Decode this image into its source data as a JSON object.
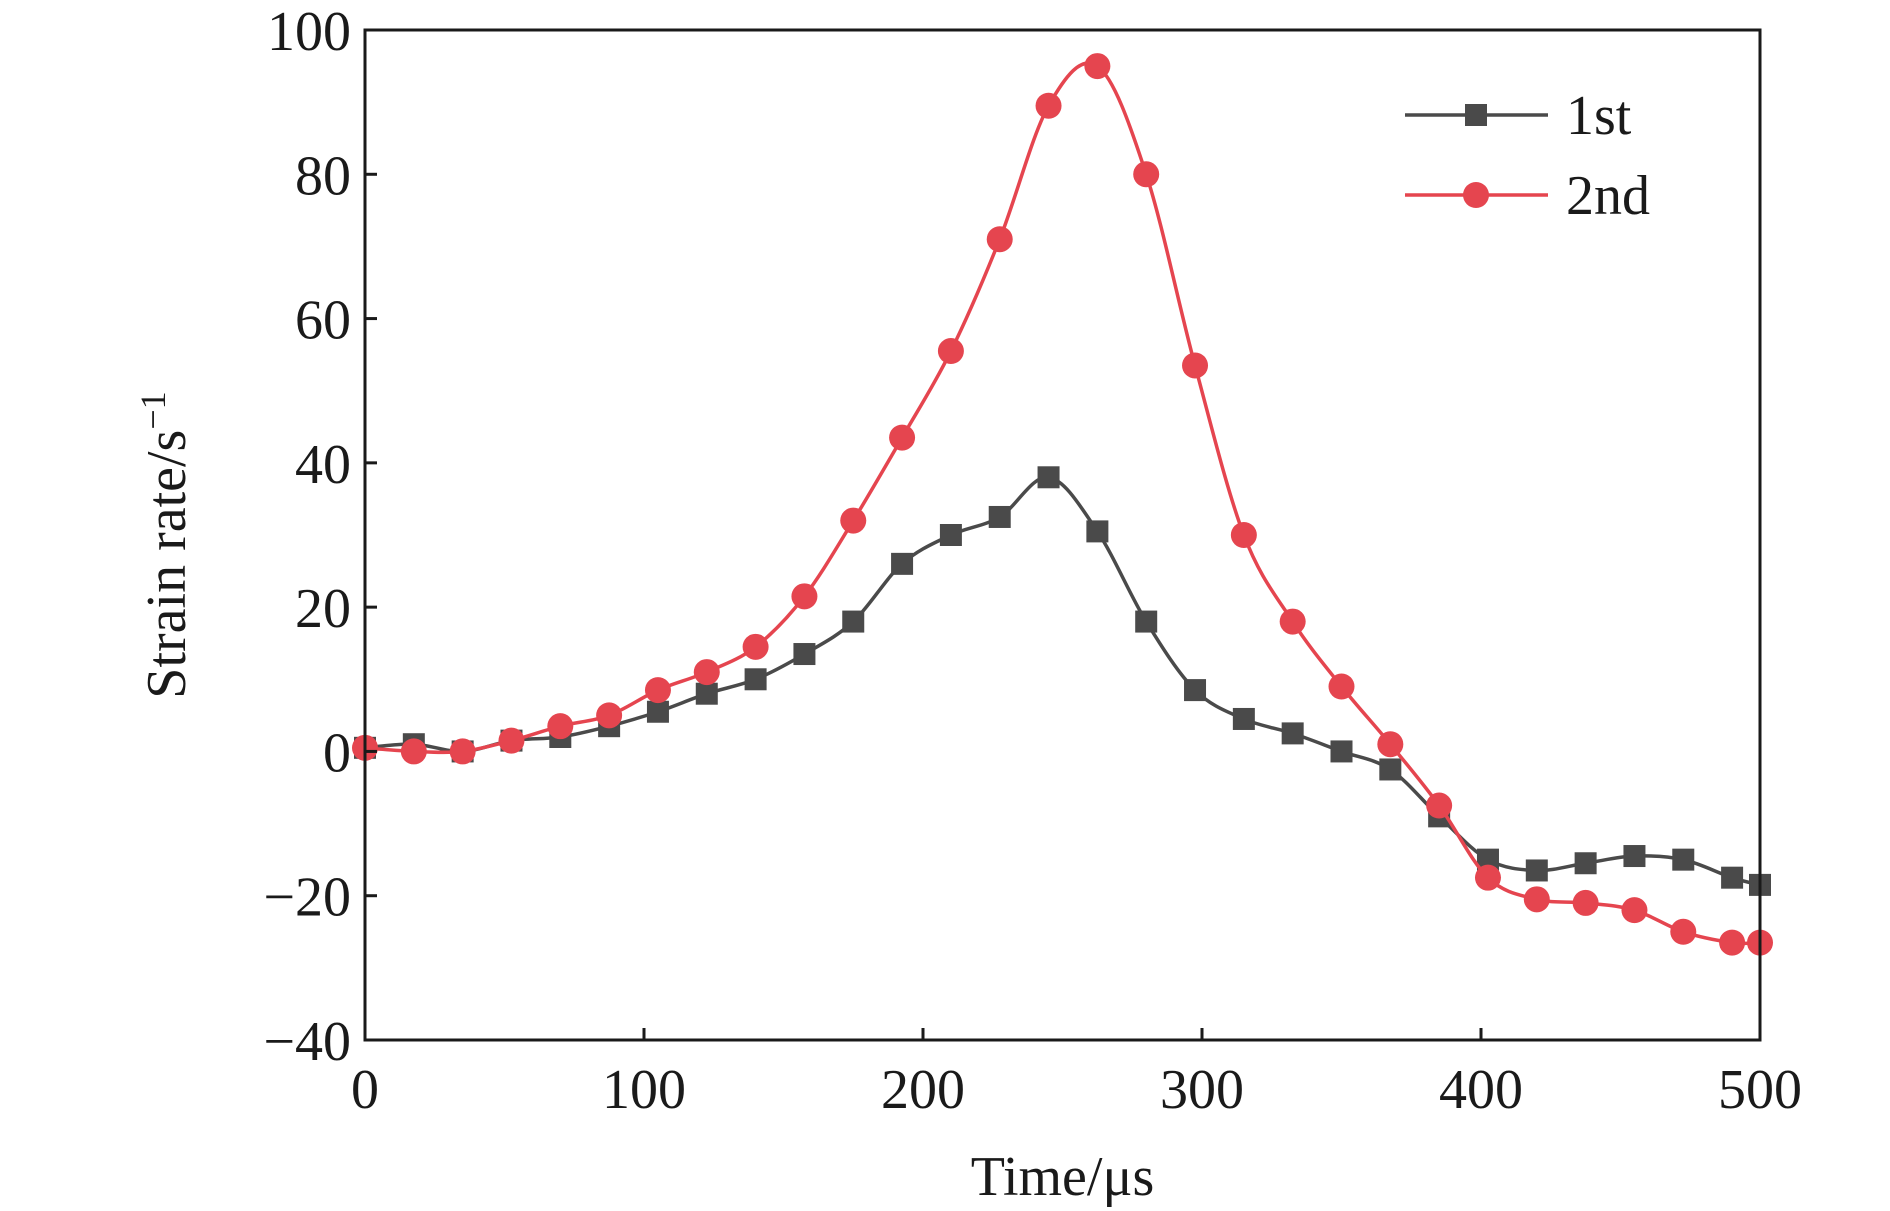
{
  "chart_data": {
    "type": "line",
    "xlabel": "Time/μs",
    "ylabel_main": "Strain rate/s",
    "ylabel_superscript": "−1",
    "xlim": [
      0,
      500
    ],
    "ylim": [
      -40,
      100
    ],
    "x_ticks": [
      0,
      100,
      200,
      300,
      400,
      500
    ],
    "x_tick_labels": [
      "0",
      "100",
      "200",
      "300",
      "400",
      "500"
    ],
    "y_ticks": [
      -40,
      -20,
      0,
      20,
      40,
      60,
      80,
      100
    ],
    "y_tick_labels": [
      "−40",
      "−20",
      "0",
      "20",
      "40",
      "60",
      "80",
      "100"
    ],
    "grid": false,
    "legend_position": "top-right",
    "series": [
      {
        "name": "1st",
        "color": "#4a4a4a",
        "marker": "square",
        "x": [
          0,
          17.5,
          35,
          52.5,
          70,
          87.5,
          105,
          122.5,
          140,
          157.5,
          175,
          192.5,
          210,
          227.5,
          245,
          262.5,
          280,
          297.5,
          315,
          332.5,
          350,
          367.5,
          385,
          402.5,
          420,
          437.5,
          455,
          472.5,
          490,
          500
        ],
        "y": [
          0.5,
          1,
          0,
          1.5,
          2,
          3.5,
          5.5,
          8,
          10,
          13.5,
          18,
          26,
          30,
          32.5,
          38,
          30.5,
          18,
          8.5,
          4.5,
          2.5,
          0,
          -2.5,
          -9,
          -15,
          -16.5,
          -15.5,
          -14.5,
          -15,
          -17.5,
          -18.5
        ]
      },
      {
        "name": "2nd",
        "color": "#e5454f",
        "marker": "circle",
        "x": [
          0,
          17.5,
          35,
          52.5,
          70,
          87.5,
          105,
          122.5,
          140,
          157.5,
          175,
          192.5,
          210,
          227.5,
          245,
          262.5,
          280,
          297.5,
          315,
          332.5,
          350,
          367.5,
          385,
          402.5,
          420,
          437.5,
          455,
          472.5,
          490,
          500
        ],
        "y": [
          0.5,
          0,
          0,
          1.5,
          3.5,
          5,
          8.5,
          11,
          14.5,
          21.5,
          32,
          43.5,
          55.5,
          71,
          89.5,
          95,
          80,
          53.5,
          30,
          18,
          9,
          1,
          -7.5,
          -17.5,
          -20.5,
          -21,
          -22,
          -25,
          -26.5,
          -26.5
        ]
      }
    ]
  }
}
